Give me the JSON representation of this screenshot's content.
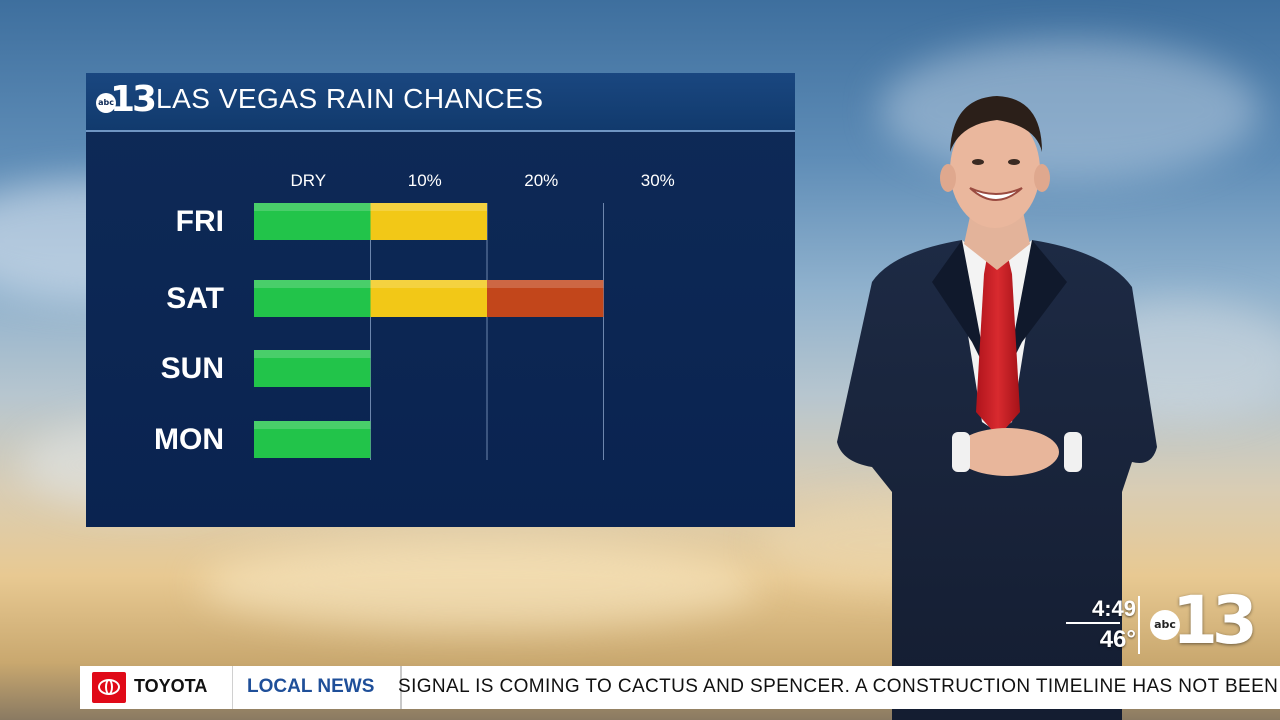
{
  "header": {
    "logo_abc": "abc",
    "logo_num": "13",
    "title": "LAS VEGAS RAIN CHANCES"
  },
  "chart_data": {
    "type": "bar",
    "orientation": "horizontal",
    "categories": [
      "FRI",
      "SAT",
      "SUN",
      "MON"
    ],
    "column_labels": [
      "DRY",
      "10%",
      "20%",
      "30%"
    ],
    "values": [
      10,
      20,
      0,
      0
    ],
    "xlim": [
      0,
      30
    ],
    "grid": true,
    "colors": {
      "dry": "#22c44a",
      "ten": "#f2c817",
      "twenty": "#c2461b"
    }
  },
  "ticker": {
    "sponsor": "TOYOTA",
    "category": "LOCAL NEWS",
    "text": "SIGNAL IS COMING TO CACTUS AND SPENCER. A CONSTRUCTION TIMELINE HAS NOT BEEN"
  },
  "bug": {
    "time": "4:49",
    "temperature": "46°",
    "logo_abc": "abc",
    "logo_num": "13"
  }
}
